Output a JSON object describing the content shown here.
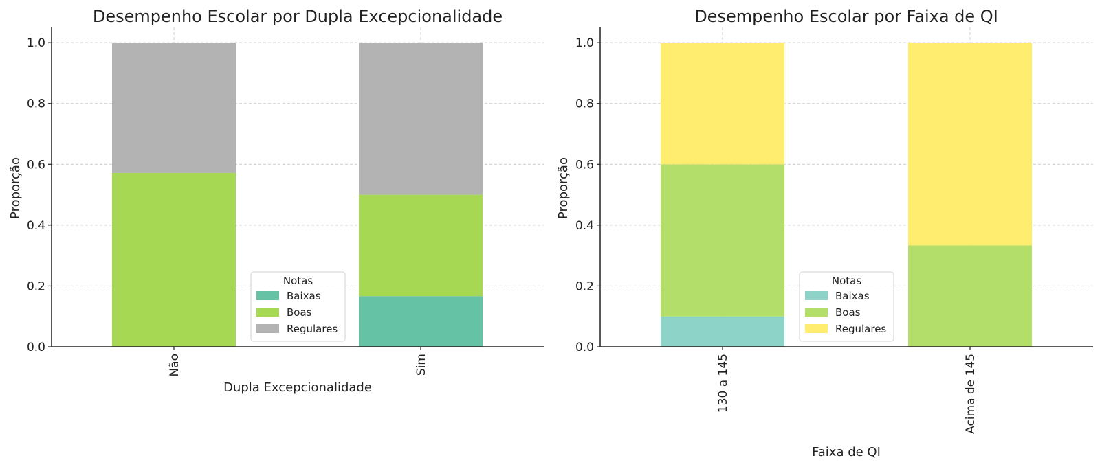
{
  "chart_data": [
    {
      "type": "bar",
      "stacked": true,
      "title": "Desempenho Escolar por Dupla Excepcionalidade",
      "xlabel": "Dupla Excepcionalidade",
      "ylabel": "Proporção",
      "categories": [
        "Não",
        "Sim"
      ],
      "ylim": [
        0,
        1.05
      ],
      "yticks": [
        "0.0",
        "0.2",
        "0.4",
        "0.6",
        "0.8",
        "1.0"
      ],
      "grid": true,
      "legend": {
        "title": "Notas",
        "position": "lower-center"
      },
      "series": [
        {
          "name": "Baixas",
          "values": [
            0.0,
            0.1667
          ],
          "color": "#66c2a5"
        },
        {
          "name": "Boas",
          "values": [
            0.5714,
            0.3333
          ],
          "color": "#a6d854"
        },
        {
          "name": "Regulares",
          "values": [
            0.4286,
            0.5
          ],
          "color": "#b3b3b3"
        }
      ]
    },
    {
      "type": "bar",
      "stacked": true,
      "title": "Desempenho Escolar por Faixa de QI",
      "xlabel": "Faixa de QI",
      "ylabel": "Proporção",
      "categories": [
        "130 a 145",
        "Acima de 145"
      ],
      "ylim": [
        0,
        1.05
      ],
      "yticks": [
        "0.0",
        "0.2",
        "0.4",
        "0.6",
        "0.8",
        "1.0"
      ],
      "grid": true,
      "legend": {
        "title": "Notas",
        "position": "lower-center"
      },
      "series": [
        {
          "name": "Baixas",
          "values": [
            0.1,
            0.0
          ],
          "color": "#8dd3c7"
        },
        {
          "name": "Boas",
          "values": [
            0.5,
            0.3333
          ],
          "color": "#b3de69"
        },
        {
          "name": "Regulares",
          "values": [
            0.4,
            0.6667
          ],
          "color": "#ffed6f"
        }
      ]
    }
  ]
}
